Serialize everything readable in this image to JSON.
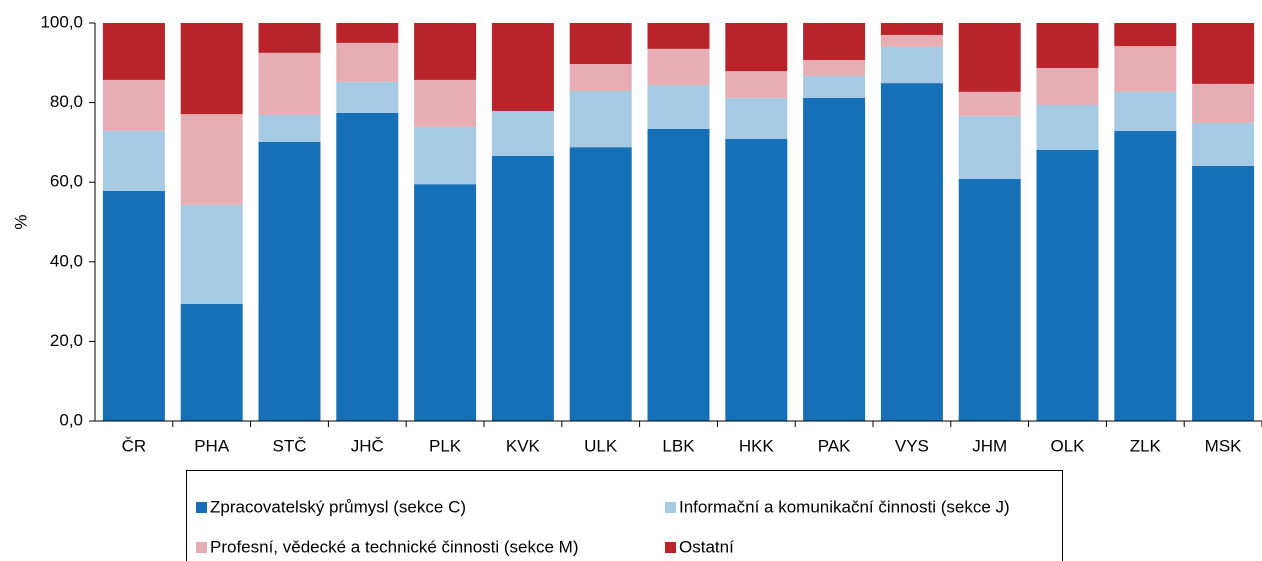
{
  "chart_data": {
    "type": "stacked_bar",
    "y_label": "%",
    "categories": [
      "ČR",
      "PHA",
      "STČ",
      "JHČ",
      "PLK",
      "KVK",
      "ULK",
      "LBK",
      "HKK",
      "PAK",
      "VYS",
      "JHM",
      "OLK",
      "ZLK",
      "MSK"
    ],
    "series": [
      {
        "name": "Zpracovatelský průmysl (sekce C)",
        "color": "#1670b8",
        "values": [
          57.8,
          29.4,
          70.1,
          77.4,
          59.5,
          66.6,
          68.8,
          73.4,
          70.9,
          81.2,
          84.9,
          60.8,
          68.1,
          72.9,
          64.1
        ]
      },
      {
        "name": "Informační a komunikační činnosti (sekce J)",
        "color": "#a6c9e4",
        "values": [
          15.1,
          24.9,
          6.8,
          7.8,
          14.4,
          11.3,
          14.1,
          11.0,
          10.3,
          5.5,
          9.1,
          15.8,
          11.3,
          9.8,
          10.8
        ]
      },
      {
        "name": "Profesní, vědecké a technické činnosti (sekce M)",
        "color": "#e6aeb3",
        "values": [
          12.8,
          22.8,
          15.6,
          9.8,
          11.8,
          0,
          6.8,
          9.1,
          6.7,
          4.0,
          3.0,
          6.1,
          9.3,
          11.5,
          9.8
        ]
      },
      {
        "name": "Ostatní",
        "color": "#b9242b",
        "values": [
          14.3,
          22.9,
          7.5,
          5.0,
          14.3,
          22.1,
          10.3,
          6.5,
          12.1,
          9.3,
          3.0,
          17.3,
          11.3,
          5.8,
          15.3
        ]
      }
    ],
    "ylim": [
      0,
      100
    ],
    "yticks": [
      {
        "value": 0,
        "label": "0,0"
      },
      {
        "value": 20,
        "label": "20,0"
      },
      {
        "value": 40,
        "label": "40,0"
      },
      {
        "value": 60,
        "label": "60,0"
      },
      {
        "value": 80,
        "label": "80,0"
      },
      {
        "value": 100,
        "label": "100,0"
      }
    ],
    "grid": false
  }
}
